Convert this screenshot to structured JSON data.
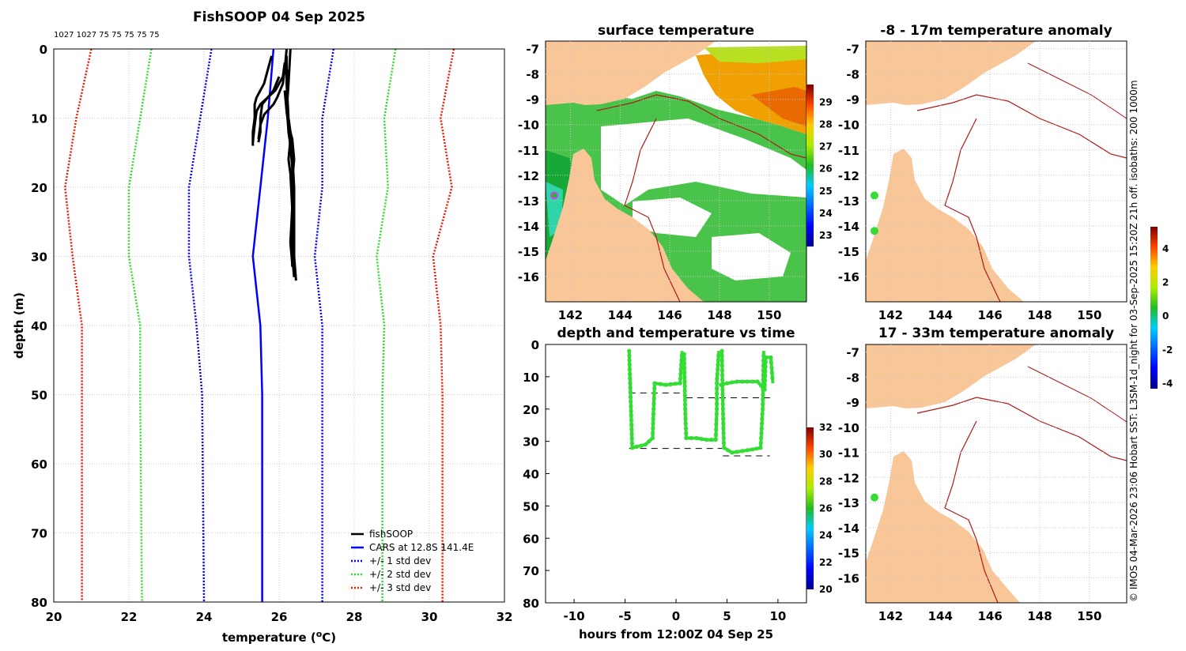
{
  "colors": {
    "fish": "#000000",
    "cars": "#0000ff",
    "std1": "#0000ff",
    "std2": "#2ddd2d",
    "std3": "#ee1a00",
    "land": "#f9c797",
    "grid": "#c8c8c8",
    "pointGreen": "#33dd33",
    "marker": "#cc44ee"
  },
  "chart_data": [
    {
      "id": "profile",
      "type": "line",
      "title": "FishSOOP 04 Sep 2025",
      "xlabel": "temperature (oC)",
      "xlabel_main": "temperature (",
      "xlabel_sup": "o",
      "xlabel_end": "C)",
      "ylabel": "depth (m)",
      "top_label": "1027 1027 75 75 75 75 75",
      "xlim": [
        20,
        32
      ],
      "ylim": [
        80,
        0
      ],
      "xticks": [
        "20",
        "22",
        "24",
        "26",
        "28",
        "30",
        "32"
      ],
      "yticks": [
        "0",
        "10",
        "20",
        "30",
        "40",
        "50",
        "60",
        "70",
        "80"
      ],
      "legend": {
        "fish": "fishSOOP",
        "cars": "CARS at 12.8S 141.4E",
        "std1": "+/- 1 std dev",
        "std2": "+/- 2 std dev",
        "std3": "+/- 3 std dev"
      },
      "cars_profile": [
        [
          25.85,
          0
        ],
        [
          25.7,
          10
        ],
        [
          25.5,
          20
        ],
        [
          25.3,
          30
        ],
        [
          25.5,
          40
        ],
        [
          25.55,
          50
        ],
        [
          25.55,
          80
        ]
      ],
      "std1_lo": [
        [
          24.2,
          0
        ],
        [
          23.9,
          10
        ],
        [
          23.6,
          20
        ],
        [
          23.6,
          30
        ],
        [
          23.8,
          40
        ],
        [
          23.95,
          50
        ],
        [
          24.0,
          80
        ]
      ],
      "std1_hi": [
        [
          27.45,
          0
        ],
        [
          27.15,
          10
        ],
        [
          27.15,
          20
        ],
        [
          26.95,
          30
        ],
        [
          27.15,
          40
        ],
        [
          27.15,
          50
        ],
        [
          27.15,
          80
        ]
      ],
      "std2_lo": [
        [
          22.6,
          0
        ],
        [
          22.3,
          10
        ],
        [
          22.0,
          20
        ],
        [
          22.0,
          30
        ],
        [
          22.3,
          40
        ],
        [
          22.3,
          50
        ],
        [
          22.35,
          80
        ]
      ],
      "std2_hi": [
        [
          29.1,
          0
        ],
        [
          28.8,
          10
        ],
        [
          28.9,
          20
        ],
        [
          28.6,
          30
        ],
        [
          28.8,
          40
        ],
        [
          28.75,
          50
        ],
        [
          28.75,
          80
        ]
      ],
      "std3_lo": [
        [
          21.0,
          0
        ],
        [
          20.6,
          10
        ],
        [
          20.3,
          20
        ],
        [
          20.5,
          30
        ],
        [
          20.75,
          40
        ],
        [
          20.75,
          50
        ],
        [
          20.75,
          80
        ]
      ],
      "std3_hi": [
        [
          30.65,
          0
        ],
        [
          30.3,
          10
        ],
        [
          30.6,
          20
        ],
        [
          30.1,
          30
        ],
        [
          30.3,
          40
        ],
        [
          30.35,
          50
        ],
        [
          30.35,
          80
        ]
      ],
      "fish_profiles": [
        [
          [
            26.2,
            0
          ],
          [
            26.15,
            3
          ],
          [
            26.1,
            5
          ],
          [
            25.95,
            7
          ],
          [
            25.85,
            8
          ],
          [
            25.6,
            9.5
          ],
          [
            25.5,
            11
          ],
          [
            25.45,
            13
          ]
        ],
        [
          [
            25.8,
            1
          ],
          [
            25.7,
            3
          ],
          [
            25.6,
            5
          ],
          [
            25.5,
            6
          ],
          [
            25.4,
            7
          ],
          [
            25.35,
            8
          ],
          [
            25.35,
            10
          ],
          [
            25.3,
            12
          ],
          [
            25.3,
            14
          ]
        ],
        [
          [
            26.0,
            4
          ],
          [
            25.85,
            6
          ],
          [
            25.7,
            7
          ],
          [
            25.55,
            8
          ],
          [
            25.5,
            10
          ],
          [
            25.5,
            12
          ],
          [
            25.45,
            13.5
          ]
        ],
        [
          [
            26.15,
            2
          ],
          [
            26.1,
            4
          ],
          [
            25.9,
            6
          ],
          [
            25.7,
            7
          ],
          [
            25.5,
            8
          ],
          [
            25.4,
            9
          ],
          [
            25.35,
            11
          ],
          [
            25.3,
            13.5
          ]
        ],
        [
          [
            26.3,
            0
          ],
          [
            26.25,
            5
          ],
          [
            26.2,
            9
          ],
          [
            26.25,
            11
          ],
          [
            26.35,
            13
          ],
          [
            26.4,
            16
          ],
          [
            26.35,
            19
          ],
          [
            26.35,
            25
          ],
          [
            26.35,
            30
          ],
          [
            26.4,
            33
          ]
        ],
        [
          [
            26.2,
            1
          ],
          [
            26.2,
            5
          ],
          [
            26.25,
            10
          ],
          [
            26.3,
            12
          ],
          [
            26.35,
            15
          ],
          [
            26.4,
            20
          ],
          [
            26.4,
            26
          ],
          [
            26.4,
            30
          ],
          [
            26.45,
            33.5
          ]
        ],
        [
          [
            26.25,
            3
          ],
          [
            26.2,
            8
          ],
          [
            26.25,
            12
          ],
          [
            26.3,
            14
          ],
          [
            26.35,
            17
          ],
          [
            26.35,
            22
          ],
          [
            26.35,
            28
          ],
          [
            26.35,
            31.5
          ]
        ],
        [
          [
            26.15,
            6
          ],
          [
            26.2,
            9
          ],
          [
            26.3,
            13
          ],
          [
            26.25,
            16
          ],
          [
            26.3,
            18
          ],
          [
            26.35,
            23
          ],
          [
            26.3,
            28
          ],
          [
            26.35,
            31
          ]
        ]
      ]
    },
    {
      "id": "timeseries",
      "type": "scatter",
      "title": "depth and temperature vs time",
      "xlabel": "hours from 12:00Z 04 Sep 25",
      "xlim": [
        -12.8,
        12.8
      ],
      "ylim": [
        80,
        0
      ],
      "xticks": [
        "-10",
        "-5",
        "0",
        "5",
        "10"
      ],
      "yticks": [
        "0",
        "10",
        "20",
        "30",
        "40",
        "50",
        "60",
        "70",
        "80"
      ],
      "colorbar": {
        "min": 20,
        "max": 32,
        "ticks": [
          "20",
          "22",
          "24",
          "26",
          "28",
          "30",
          "32"
        ]
      },
      "tracks": [
        [
          [
            -4.6,
            2
          ],
          [
            -4.5,
            12
          ],
          [
            -4.4,
            22
          ],
          [
            -4.3,
            32
          ],
          [
            -3.0,
            31
          ],
          [
            -2.3,
            29
          ],
          [
            -2.2,
            20
          ],
          [
            -2.1,
            12
          ],
          [
            -1.0,
            12.5
          ],
          [
            0.4,
            12
          ],
          [
            0.6,
            2
          ]
        ],
        [
          [
            0.8,
            3
          ],
          [
            0.9,
            20
          ],
          [
            1.0,
            29
          ],
          [
            2.0,
            29
          ],
          [
            3.0,
            29.5
          ],
          [
            3.9,
            29.5
          ],
          [
            4.0,
            20
          ],
          [
            4.0,
            12
          ],
          [
            4.2,
            2
          ]
        ],
        [
          [
            4.4,
            12.5
          ],
          [
            5.0,
            12
          ],
          [
            6.0,
            11.5
          ],
          [
            7.0,
            11.5
          ],
          [
            8.0,
            11.5
          ],
          [
            8.7,
            14
          ],
          [
            8.8,
            4
          ],
          [
            9.3,
            4
          ],
          [
            9.5,
            12
          ]
        ],
        [
          [
            4.5,
            2
          ],
          [
            4.6,
            20
          ],
          [
            4.7,
            32
          ],
          [
            5.5,
            33.5
          ],
          [
            6.5,
            33
          ],
          [
            7.5,
            32.5
          ],
          [
            8.3,
            32
          ],
          [
            8.5,
            20
          ],
          [
            8.6,
            2
          ]
        ]
      ],
      "dashes": [
        [
          [
            -4.6,
            15
          ],
          [
            0.8,
            15
          ]
        ],
        [
          [
            1.0,
            16.5
          ],
          [
            9.5,
            16.5
          ]
        ],
        [
          [
            -4.6,
            32.2
          ],
          [
            4.5,
            32.2
          ]
        ],
        [
          [
            4.6,
            34.5
          ],
          [
            9.2,
            34.5
          ]
        ]
      ]
    },
    {
      "id": "sst_map",
      "type": "heatmap",
      "title": "surface temperature",
      "xlim": [
        141,
        151.5
      ],
      "ylim": [
        -17,
        -6.7
      ],
      "xticks": [
        "142",
        "144",
        "146",
        "148",
        "150"
      ],
      "yticks": [
        "-7",
        "-8",
        "-9",
        "-10",
        "-11",
        "-12",
        "-13",
        "-14",
        "-15",
        "-16"
      ],
      "colorbar": {
        "min": 22.5,
        "max": 29.8,
        "ticks": [
          "23",
          "24",
          "25",
          "26",
          "27",
          "28",
          "29"
        ]
      },
      "vessel_position": [
        141.35,
        -12.8
      ]
    },
    {
      "id": "anom_shallow",
      "type": "heatmap",
      "title": "-8 - 17m temperature anomaly",
      "xlim": [
        141,
        151.5
      ],
      "ylim": [
        -17,
        -6.7
      ],
      "xticks": [
        "142",
        "144",
        "146",
        "148",
        "150"
      ],
      "yticks": [
        "-7",
        "-8",
        "-9",
        "-10",
        "-11",
        "-12",
        "-13",
        "-14",
        "-15",
        "-16"
      ],
      "points": [
        [
          141.35,
          -12.8
        ],
        [
          141.35,
          -14.2
        ]
      ]
    },
    {
      "id": "anom_deep",
      "type": "heatmap",
      "title": "17 - 33m temperature anomaly",
      "xlim": [
        141,
        151.5
      ],
      "ylim": [
        -17,
        -6.7
      ],
      "xticks": [
        "142",
        "144",
        "146",
        "148",
        "150"
      ],
      "yticks": [
        "-7",
        "-8",
        "-9",
        "-10",
        "-11",
        "-12",
        "-13",
        "-14",
        "-15",
        "-16"
      ],
      "points": [
        [
          141.35,
          -12.8
        ]
      ]
    },
    {
      "id": "anomaly_colorbar",
      "type": "colorbar",
      "min": -4.3,
      "max": 5.3,
      "ticks": [
        "-4",
        "-2",
        "0",
        "2",
        "4"
      ]
    }
  ],
  "credit": "© IMOS 04-Mar-2026 23:06 Hobart SST: L3SM-1d_night for 03-Sep-2025 15:20Z 21h off. isobaths: 200  1000m"
}
